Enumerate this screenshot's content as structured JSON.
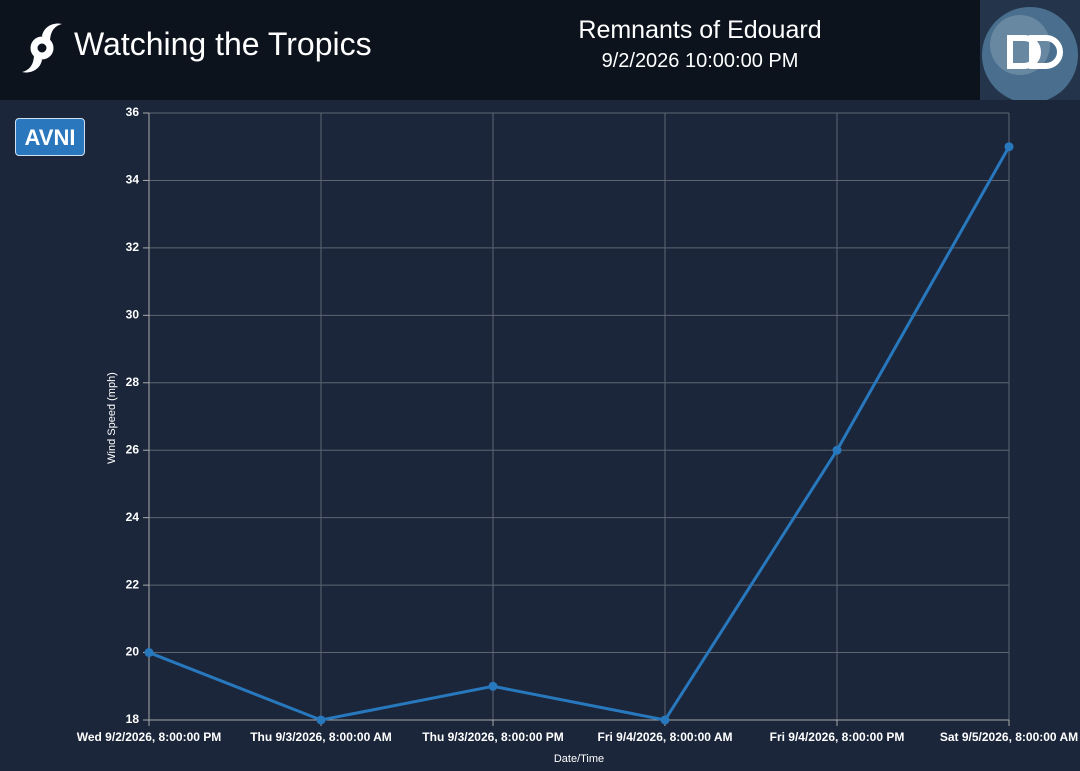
{
  "header": {
    "title": "Watching the Tropics",
    "storm_name": "Remnants of Edouard",
    "timestamp": "9/2/2026 10:00:00 PM"
  },
  "button": {
    "label": "AVNI"
  },
  "chart_data": {
    "type": "line",
    "x_label": "Date/Time",
    "y_label": "Wind Speed (mph)",
    "categories": [
      "Wed 9/2/2026, 8:00:00 PM",
      "Thu 9/3/2026, 8:00:00 AM",
      "Thu 9/3/2026, 8:00:00 PM",
      "Fri 9/4/2026, 8:00:00 AM",
      "Fri 9/4/2026, 8:00:00 PM",
      "Sat 9/5/2026, 8:00:00 AM"
    ],
    "values": [
      20,
      18,
      19,
      18,
      26,
      35
    ],
    "color": "#2878bd",
    "ylim": [
      18,
      36
    ],
    "yticks": [
      18,
      20,
      22,
      24,
      26,
      28,
      30,
      32,
      34,
      36
    ],
    "grid": true
  }
}
